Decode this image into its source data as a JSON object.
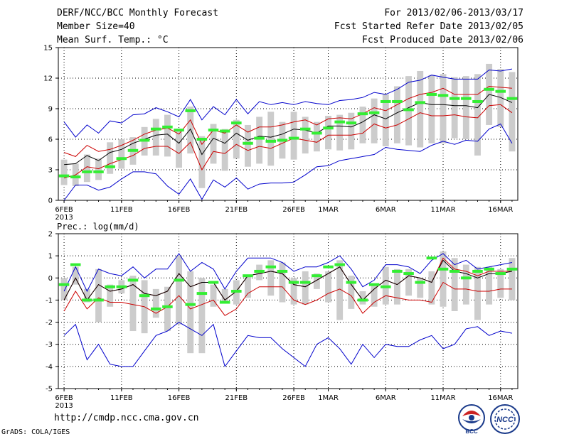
{
  "header": {
    "title": "DERF/NCC/BCC Monthly Forecast",
    "member_size": "Member Size=40",
    "variable": "Mean Surf. Temp.: °C",
    "period": "For 2013/02/06-2013/03/17",
    "fcst_started": "Fcst Started Refer Date 2013/02/05",
    "fcst_produced": "Fcst Produced Date 2013/02/06"
  },
  "footer": {
    "url": "http://cmdp.ncc.cma.gov.cn",
    "grads": "GrADS: COLA/IGES",
    "logo_left_text": "BCC",
    "logo_right_text": "NCC"
  },
  "colors": {
    "spread": "#0000cc",
    "quartile": "#cc0000",
    "mean": "#000000",
    "box": "#cccccc",
    "obs": "#33ee33",
    "grid": "#000000"
  },
  "chart_data": [
    {
      "type": "line",
      "title": "Mean Surf. Temp.: °C",
      "ylim": [
        0,
        15
      ],
      "yticks": [
        0,
        3,
        6,
        9,
        12,
        15
      ],
      "x_ticks": [
        {
          "day": 0,
          "label": "6FEB",
          "sub": "2013"
        },
        {
          "day": 5,
          "label": "11FEB"
        },
        {
          "day": 10,
          "label": "16FEB"
        },
        {
          "day": 15,
          "label": "21FEB"
        },
        {
          "day": 20,
          "label": "26FEB"
        },
        {
          "day": 23,
          "label": "1MAR"
        },
        {
          "day": 28,
          "label": "6MAR"
        },
        {
          "day": 33,
          "label": "11MAR"
        },
        {
          "day": 38,
          "label": "16MAR"
        }
      ],
      "days": 40,
      "series": [
        {
          "name": "max",
          "values": [
            7.7,
            6.2,
            7.4,
            6.6,
            7.8,
            7.6,
            8.4,
            8.5,
            9.1,
            8.7,
            8.2,
            9.9,
            7.9,
            9.2,
            8.4,
            9.9,
            8.5,
            9.7,
            9.4,
            9.6,
            9.4,
            9.7,
            9.5,
            9.4,
            9.8,
            9.9,
            10.1,
            10.6,
            10.4,
            10.9,
            11.6,
            11.8,
            12.3,
            12.1,
            11.9,
            11.9,
            11.9,
            12.8,
            12.7,
            12.9
          ]
        },
        {
          "name": "upper",
          "values": [
            4.7,
            4.3,
            5.4,
            4.8,
            5.0,
            5.4,
            5.9,
            6.5,
            6.9,
            7.1,
            6.5,
            7.9,
            5.5,
            6.9,
            6.6,
            7.4,
            6.7,
            7.2,
            7.2,
            7.4,
            7.7,
            7.9,
            7.4,
            8.0,
            8.1,
            8.0,
            8.5,
            9.1,
            8.8,
            9.4,
            10.0,
            10.4,
            10.6,
            11.0,
            10.4,
            10.4,
            10.4,
            11.2,
            11.1,
            11.0
          ]
        },
        {
          "name": "mean",
          "values": [
            3.5,
            3.6,
            4.4,
            3.9,
            4.7,
            5.0,
            5.6,
            6.0,
            6.4,
            6.5,
            5.6,
            7.0,
            4.5,
            6.1,
            5.6,
            6.6,
            5.9,
            6.3,
            6.2,
            6.5,
            7.0,
            6.9,
            6.6,
            7.3,
            7.3,
            7.2,
            7.7,
            8.4,
            8.0,
            8.6,
            9.1,
            9.6,
            9.4,
            9.4,
            9.3,
            9.3,
            9.1,
            10.4,
            10.1,
            9.6
          ]
        },
        {
          "name": "lower",
          "values": [
            2.2,
            2.5,
            3.3,
            3.1,
            3.6,
            4.0,
            4.4,
            5.1,
            5.3,
            5.3,
            4.6,
            5.7,
            3.0,
            4.8,
            4.6,
            5.5,
            4.9,
            5.3,
            5.1,
            5.6,
            6.1,
            5.9,
            5.7,
            6.4,
            6.4,
            6.4,
            6.6,
            7.5,
            7.1,
            7.4,
            8.0,
            8.6,
            8.3,
            8.3,
            8.4,
            8.2,
            8.1,
            9.3,
            9.4,
            8.6
          ]
        },
        {
          "name": "min",
          "values": [
            0.0,
            1.5,
            1.5,
            1.0,
            1.3,
            2.1,
            2.8,
            2.8,
            2.6,
            1.4,
            0.6,
            2.1,
            0.1,
            2.0,
            1.3,
            2.2,
            1.1,
            1.6,
            1.7,
            1.7,
            1.8,
            2.5,
            3.3,
            3.4,
            3.9,
            4.1,
            4.3,
            4.5,
            5.2,
            5.0,
            4.9,
            4.8,
            5.4,
            5.8,
            5.5,
            5.9,
            5.8,
            7.0,
            7.5,
            5.6
          ]
        }
      ],
      "boxes": {
        "low": [
          1.5,
          1.4,
          1.8,
          2.0,
          2.6,
          3.1,
          3.5,
          4.4,
          4.4,
          4.3,
          3.2,
          4.6,
          1.2,
          3.6,
          2.9,
          4.1,
          3.3,
          3.6,
          3.4,
          4.1,
          4.0,
          4.6,
          4.8,
          5.0,
          4.9,
          5.0,
          5.6,
          5.6,
          5.3,
          5.6,
          5.4,
          5.2,
          5.6,
          5.6,
          6.1,
          6.0,
          4.4,
          7.4,
          7.2,
          4.8
        ],
        "high": [
          4.0,
          3.6,
          4.5,
          4.1,
          5.7,
          6.0,
          6.2,
          7.2,
          8.0,
          8.4,
          7.0,
          9.2,
          6.3,
          7.5,
          7.0,
          7.9,
          7.4,
          8.2,
          8.7,
          7.7,
          8.7,
          8.2,
          7.7,
          8.3,
          8.4,
          8.6,
          9.2,
          10.0,
          10.4,
          11.2,
          12.2,
          12.7,
          12.3,
          12.4,
          12.1,
          12.2,
          12.4,
          13.4,
          12.9,
          12.6
        ]
      },
      "observed": [
        2.4,
        2.3,
        2.8,
        2.8,
        3.3,
        4.1,
        4.9,
        5.9,
        7.0,
        7.2,
        6.9,
        8.8,
        6.0,
        6.9,
        6.8,
        7.6,
        5.6,
        6.1,
        5.8,
        5.9,
        6.1,
        7.0,
        6.6,
        7.1,
        7.7,
        7.6,
        8.5,
        8.6,
        9.7,
        9.7,
        8.9,
        9.6,
        10.4,
        10.3,
        10.0,
        10.0,
        9.7,
        10.9,
        10.7,
        10.0
      ]
    },
    {
      "type": "line",
      "title": "Prec.: log(mm/d)",
      "ylim": [
        -5,
        2
      ],
      "yticks": [
        -5,
        -4,
        -3,
        -2,
        -1,
        0,
        1,
        2
      ],
      "x_ticks": [
        {
          "day": 0,
          "label": "6FEB",
          "sub": "2013"
        },
        {
          "day": 5,
          "label": "11FEB"
        },
        {
          "day": 10,
          "label": "16FEB"
        },
        {
          "day": 15,
          "label": "21FEB"
        },
        {
          "day": 20,
          "label": "26FEB"
        },
        {
          "day": 23,
          "label": "1MAR"
        },
        {
          "day": 28,
          "label": "6MAR"
        },
        {
          "day": 33,
          "label": "11MAR"
        },
        {
          "day": 38,
          "label": "16MAR"
        }
      ],
      "days": 40,
      "series": [
        {
          "name": "max",
          "values": [
            -0.6,
            0.5,
            -0.6,
            0.4,
            0.2,
            0.1,
            0.5,
            0.0,
            0.4,
            0.4,
            1.1,
            0.3,
            0.7,
            0.4,
            -0.5,
            0.3,
            0.9,
            0.9,
            0.9,
            0.7,
            0.3,
            0.5,
            0.5,
            0.7,
            1.0,
            0.4,
            -0.4,
            -0.1,
            0.6,
            0.6,
            0.5,
            0.2,
            0.8,
            1.1,
            0.6,
            0.8,
            0.4,
            0.5,
            0.6,
            0.7
          ]
        },
        {
          "name": "upper",
          "values": [
            -1.0,
            0.0,
            -1.0,
            -0.3,
            -0.6,
            -0.5,
            -0.3,
            -0.7,
            -0.8,
            -0.6,
            0.2,
            -0.4,
            -0.2,
            -0.2,
            -1.0,
            -0.6,
            0.1,
            0.2,
            0.3,
            0.2,
            -0.3,
            -0.4,
            -0.1,
            0.2,
            0.5,
            -0.3,
            -1.0,
            -0.5,
            -0.1,
            -0.3,
            0.1,
            0.0,
            -0.2,
            0.9,
            0.4,
            0.3,
            0.1,
            0.3,
            0.3,
            0.3
          ]
        },
        {
          "name": "mean",
          "values": [
            -1.0,
            0.0,
            -1.0,
            -0.3,
            -0.6,
            -0.5,
            -0.3,
            -0.7,
            -0.8,
            -0.6,
            0.2,
            -0.4,
            -0.2,
            -0.2,
            -1.0,
            -0.6,
            0.1,
            0.2,
            0.3,
            0.2,
            -0.3,
            -0.4,
            -0.1,
            0.2,
            0.5,
            -0.3,
            -1.0,
            -0.5,
            -0.1,
            -0.3,
            0.1,
            0.0,
            -0.2,
            0.8,
            0.3,
            0.2,
            0.0,
            0.2,
            0.2,
            0.3
          ]
        },
        {
          "name": "lower",
          "values": [
            -1.5,
            -0.6,
            -1.4,
            -0.9,
            -1.1,
            -1.1,
            -1.2,
            -1.3,
            -1.6,
            -1.3,
            -0.8,
            -1.4,
            -1.2,
            -1.0,
            -1.7,
            -1.4,
            -0.7,
            -0.4,
            -0.4,
            -0.4,
            -1.0,
            -1.2,
            -1.0,
            -0.7,
            -0.5,
            -0.8,
            -1.6,
            -1.1,
            -0.8,
            -0.9,
            -1.0,
            -1.0,
            -1.1,
            -0.2,
            -0.5,
            -0.5,
            -0.6,
            -0.6,
            -0.5,
            -0.5
          ]
        },
        {
          "name": "min",
          "values": [
            -2.6,
            -2.1,
            -3.7,
            -3.0,
            -3.9,
            -4.0,
            -4.0,
            -3.3,
            -2.6,
            -2.4,
            -2.0,
            -2.3,
            -2.6,
            -2.1,
            -4.0,
            -3.3,
            -2.6,
            -2.7,
            -2.7,
            -3.2,
            -3.6,
            -4.0,
            -3.0,
            -2.7,
            -3.2,
            -3.9,
            -3.0,
            -3.6,
            -3.0,
            -3.1,
            -3.1,
            -2.8,
            -2.6,
            -3.2,
            -3.0,
            -2.3,
            -2.2,
            -2.6,
            -2.4,
            -2.5
          ]
        }
      ],
      "boxes": {
        "low": [
          -1.0,
          -0.3,
          -1.1,
          -2.0,
          -1.3,
          -0.7,
          -2.4,
          -2.5,
          -1.8,
          -2.4,
          -2.1,
          -3.4,
          -3.4,
          -1.3,
          -1.1,
          -1.2,
          -0.9,
          -0.1,
          -0.8,
          -1.1,
          -1.2,
          -1.2,
          -0.5,
          -1.1,
          -1.9,
          -1.4,
          -1.2,
          -1.3,
          -1.2,
          -1.2,
          -0.8,
          -0.9,
          -1.2,
          -1.3,
          -1.5,
          -1.2,
          -1.9,
          -1.2,
          -0.9,
          -1.0
        ],
        "high": [
          0.0,
          0.5,
          -0.5,
          0.4,
          -0.3,
          -0.1,
          0.1,
          -0.1,
          -0.5,
          -0.4,
          1.0,
          0.3,
          0.0,
          -0.3,
          -0.5,
          -0.1,
          0.1,
          0.6,
          0.8,
          0.7,
          0.0,
          0.3,
          0.2,
          0.3,
          0.8,
          0.1,
          -0.6,
          -0.3,
          0.5,
          0.4,
          0.4,
          0.0,
          0.3,
          1.2,
          0.9,
          0.6,
          0.5,
          0.5,
          0.4,
          0.9
        ]
      },
      "observed": [
        -0.3,
        0.6,
        -1.0,
        -1.0,
        -0.4,
        -0.4,
        -0.1,
        -0.8,
        -1.4,
        -1.3,
        -0.1,
        -1.2,
        -0.7,
        -0.2,
        -1.1,
        -0.6,
        0.1,
        0.3,
        0.5,
        0.3,
        -0.2,
        -0.2,
        0.1,
        0.5,
        0.6,
        -0.2,
        -1.0,
        -0.3,
        -0.4,
        0.3,
        0.2,
        -0.2,
        0.9,
        0.4,
        0.3,
        0.0,
        0.3,
        0.4,
        0.2,
        0.4
      ]
    }
  ]
}
